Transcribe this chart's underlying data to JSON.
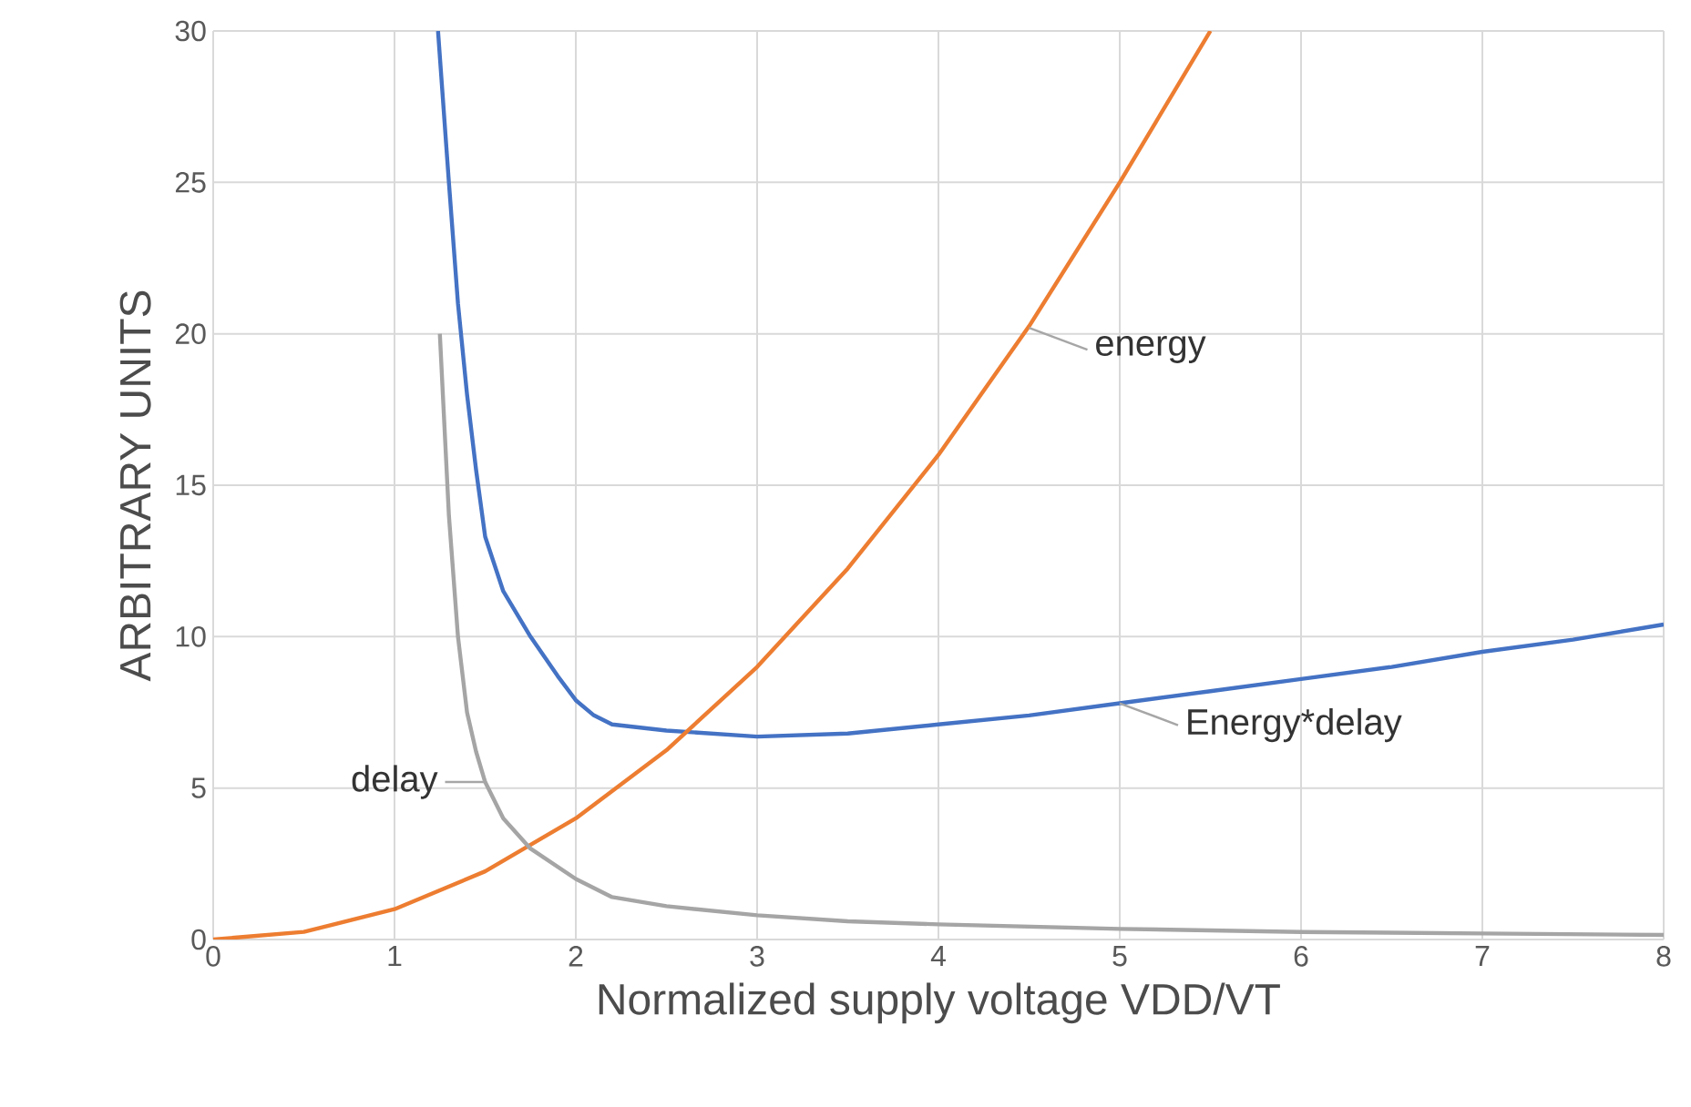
{
  "chart_data": {
    "type": "line",
    "xlabel": "Normalized supply voltage VDD/VT",
    "ylabel": "ARBITRARY UNITS",
    "xlim": [
      0,
      8
    ],
    "ylim": [
      0,
      30
    ],
    "xticks": [
      0,
      1,
      2,
      3,
      4,
      5,
      6,
      7,
      8
    ],
    "yticks": [
      0,
      5,
      10,
      15,
      20,
      25,
      30
    ],
    "grid": true,
    "series": [
      {
        "color": "#4472c4",
        "x": [
          1.24,
          1.3,
          1.35,
          1.4,
          1.45,
          1.5,
          1.6,
          1.75,
          1.9,
          2,
          2.1,
          2.2,
          2.5,
          3,
          3.5,
          4,
          4.5,
          5,
          5.5,
          6,
          6.5,
          7,
          7.5,
          8
        ],
        "values": [
          30,
          25,
          21,
          18,
          15.5,
          13.3,
          11.5,
          10,
          8.7,
          7.9,
          7.4,
          7.1,
          6.9,
          6.7,
          6.8,
          7.1,
          7.4,
          7.8,
          8.2,
          8.6,
          9,
          9.5,
          9.9,
          10.4
        ]
      },
      {
        "color": "#ed7d31",
        "x": [
          0,
          0.5,
          1,
          1.5,
          2,
          2.5,
          3,
          3.5,
          4,
          4.5,
          5,
          5.5
        ],
        "values": [
          0,
          0.25,
          1,
          2.25,
          4,
          6.25,
          9,
          12.25,
          16,
          20.25,
          25,
          30
        ]
      },
      {
        "color": "#a5a5a5",
        "x": [
          1.25,
          1.3,
          1.35,
          1.4,
          1.45,
          1.5,
          1.6,
          1.75,
          2,
          2.2,
          2.5,
          3,
          3.5,
          4,
          5,
          6,
          7,
          8
        ],
        "values": [
          20,
          14,
          10,
          7.5,
          6.2,
          5.2,
          4,
          3,
          2,
          1.4,
          1.1,
          0.8,
          0.6,
          0.5,
          0.35,
          0.25,
          0.2,
          0.15
        ]
      }
    ],
    "annotations": [
      {
        "text": "energy",
        "x": 4.5,
        "y": 20.2
      },
      {
        "text": "Energy*delay",
        "x": 5,
        "y": 7.8
      },
      {
        "text": "delay",
        "x": 1.5,
        "y": 5.2
      }
    ]
  }
}
